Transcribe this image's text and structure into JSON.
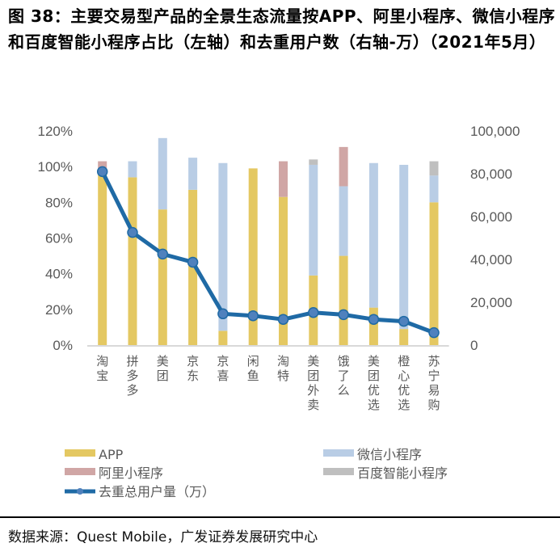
{
  "title": "图 38：主要交易型产品的全景生态流量按APP、阿里小程序、微信小程序和百度智能小程序占比（左轴）和去重用户数（右轴-万）（2021年5月）",
  "source": "数据来源：Quest Mobile，广发证券发展研究中心",
  "chart_data": {
    "type": "bar",
    "stacked": true,
    "categories": [
      "淘宝",
      "拼多多",
      "美团",
      "京东",
      "京喜",
      "闲鱼",
      "淘特",
      "美团外卖",
      "饿了么",
      "美团优选",
      "橙心优选",
      "苏宁易购"
    ],
    "series": [
      {
        "name": "APP",
        "color": "#E4C862",
        "axis": "left",
        "values": [
          98,
          94,
          76,
          87,
          8,
          99,
          83,
          39,
          50,
          21,
          9,
          80
        ]
      },
      {
        "name": "微信小程序",
        "color": "#B9CDE5",
        "axis": "left",
        "values": [
          0,
          9,
          40,
          18,
          94,
          0,
          0,
          62,
          39,
          81,
          92,
          15
        ]
      },
      {
        "name": "阿里小程序",
        "color": "#D0A6A5",
        "axis": "left",
        "values": [
          5,
          0,
          0,
          0,
          0,
          0,
          20,
          0,
          22,
          0,
          0,
          0
        ]
      },
      {
        "name": "百度智能小程序",
        "color": "#BFBFBF",
        "axis": "left",
        "values": [
          0,
          0,
          0,
          0,
          0,
          0,
          0,
          3,
          0,
          0,
          0,
          8
        ]
      },
      {
        "name": "去重总用户量（万）",
        "type": "line",
        "color": "#1F6AA5",
        "marker_color": "#4F81BD",
        "axis": "right",
        "values": [
          81000,
          52600,
          42500,
          38700,
          14600,
          13700,
          12000,
          15200,
          14200,
          12000,
          11100,
          5800
        ]
      }
    ],
    "left_axis": {
      "ylim": [
        0,
        120
      ],
      "ticks": [
        "0%",
        "20%",
        "40%",
        "60%",
        "80%",
        "100%",
        "120%"
      ]
    },
    "right_axis": {
      "ylim": [
        0,
        100000
      ],
      "ticks": [
        "0",
        "20,000",
        "40,000",
        "60,000",
        "80,000",
        "100,000"
      ]
    },
    "legend_placement": "bottom",
    "grid": false
  }
}
